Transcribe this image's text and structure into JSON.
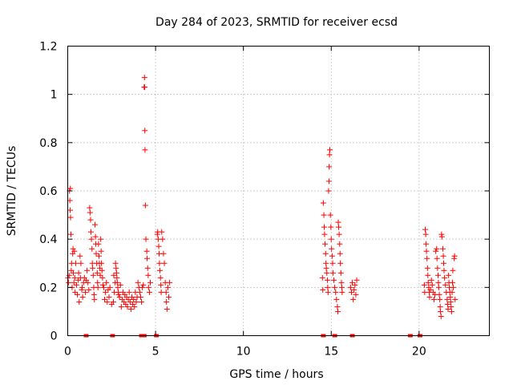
{
  "chart_data": {
    "type": "scatter",
    "title": "Day 284 of 2023, SRMTID for receiver ecsd",
    "xlabel": "GPS time / hours",
    "ylabel": "SRMTID / TECUs",
    "xlim": [
      0,
      24
    ],
    "ylim": [
      0,
      1.2
    ],
    "xticks": [
      0,
      5,
      10,
      15,
      20
    ],
    "yticks": [
      0,
      0.2,
      0.4,
      0.6,
      0.8,
      1,
      1.2
    ],
    "xtick_labels": [
      "0",
      "5",
      "10",
      "15",
      "20"
    ],
    "ytick_labels": [
      "0",
      "0.2",
      "0.4",
      "0.6",
      "0.8",
      "1",
      "1.2"
    ],
    "grid": true,
    "marker": "+",
    "color": "#ff0000",
    "series": [
      {
        "name": "SRMTID",
        "points": [
          [
            0.02,
            0.24
          ],
          [
            0.05,
            0.22
          ],
          [
            0.08,
            0.25
          ],
          [
            0.1,
            0.6
          ],
          [
            0.12,
            0.56
          ],
          [
            0.14,
            0.52
          ],
          [
            0.15,
            0.61
          ],
          [
            0.16,
            0.49
          ],
          [
            0.18,
            0.42
          ],
          [
            0.2,
            0.27
          ],
          [
            0.22,
            0.3
          ],
          [
            0.25,
            0.2
          ],
          [
            0.28,
            0.34
          ],
          [
            0.3,
            0.36
          ],
          [
            0.32,
            0.26
          ],
          [
            0.35,
            0.22
          ],
          [
            0.38,
            0.35
          ],
          [
            0.4,
            0.24
          ],
          [
            0.42,
            0.18
          ],
          [
            0.45,
            0.3
          ],
          [
            0.5,
            0.21
          ],
          [
            0.55,
            0.17
          ],
          [
            0.6,
            0.23
          ],
          [
            0.62,
            0.26
          ],
          [
            0.65,
            0.14
          ],
          [
            0.7,
            0.33
          ],
          [
            0.72,
            0.24
          ],
          [
            0.75,
            0.3
          ],
          [
            0.8,
            0.19
          ],
          [
            0.82,
            0.2
          ],
          [
            0.85,
            0.16
          ],
          [
            0.9,
            0.22
          ],
          [
            0.95,
            0.24
          ],
          [
            1.0,
            0.18
          ],
          [
            1.05,
            0.23
          ],
          [
            1.1,
            0.27
          ],
          [
            1.15,
            0.22
          ],
          [
            1.2,
            0.19
          ],
          [
            1.25,
            0.53
          ],
          [
            1.27,
            0.51
          ],
          [
            1.3,
            0.48
          ],
          [
            1.32,
            0.43
          ],
          [
            1.35,
            0.4
          ],
          [
            1.38,
            0.36
          ],
          [
            1.4,
            0.3
          ],
          [
            1.42,
            0.28
          ],
          [
            1.45,
            0.25
          ],
          [
            1.48,
            0.2
          ],
          [
            1.5,
            0.17
          ],
          [
            1.52,
            0.15
          ],
          [
            1.55,
            0.46
          ],
          [
            1.58,
            0.41
          ],
          [
            1.6,
            0.38
          ],
          [
            1.62,
            0.34
          ],
          [
            1.65,
            0.3
          ],
          [
            1.68,
            0.26
          ],
          [
            1.7,
            0.22
          ],
          [
            1.72,
            0.2
          ],
          [
            1.75,
            0.38
          ],
          [
            1.78,
            0.33
          ],
          [
            1.8,
            0.3
          ],
          [
            1.82,
            0.28
          ],
          [
            1.85,
            0.25
          ],
          [
            1.88,
            0.4
          ],
          [
            1.9,
            0.35
          ],
          [
            1.92,
            0.3
          ],
          [
            1.95,
            0.27
          ],
          [
            1.98,
            0.24
          ],
          [
            2.0,
            0.21
          ],
          [
            2.05,
            0.2
          ],
          [
            2.1,
            0.15
          ],
          [
            2.15,
            0.18
          ],
          [
            2.2,
            0.22
          ],
          [
            2.25,
            0.14
          ],
          [
            2.3,
            0.19
          ],
          [
            2.35,
            0.16
          ],
          [
            2.4,
            0.2
          ],
          [
            2.5,
            0.13
          ],
          [
            2.6,
            0.14
          ],
          [
            2.62,
            0.25
          ],
          [
            2.65,
            0.18
          ],
          [
            2.7,
            0.22
          ],
          [
            2.72,
            0.3
          ],
          [
            2.75,
            0.28
          ],
          [
            2.78,
            0.26
          ],
          [
            2.8,
            0.24
          ],
          [
            2.82,
            0.22
          ],
          [
            2.85,
            0.2
          ],
          [
            2.88,
            0.18
          ],
          [
            2.9,
            0.17
          ],
          [
            2.95,
            0.16
          ],
          [
            3.0,
            0.21
          ],
          [
            3.05,
            0.12
          ],
          [
            3.1,
            0.15
          ],
          [
            3.15,
            0.18
          ],
          [
            3.2,
            0.14
          ],
          [
            3.25,
            0.17
          ],
          [
            3.3,
            0.13
          ],
          [
            3.35,
            0.16
          ],
          [
            3.4,
            0.12
          ],
          [
            3.45,
            0.15
          ],
          [
            3.5,
            0.18
          ],
          [
            3.55,
            0.14
          ],
          [
            3.6,
            0.11
          ],
          [
            3.65,
            0.16
          ],
          [
            3.7,
            0.13
          ],
          [
            3.75,
            0.15
          ],
          [
            3.8,
            0.12
          ],
          [
            3.85,
            0.18
          ],
          [
            3.9,
            0.14
          ],
          [
            3.95,
            0.16
          ],
          [
            4.0,
            0.22
          ],
          [
            4.05,
            0.2
          ],
          [
            4.1,
            0.18
          ],
          [
            4.15,
            0.16
          ],
          [
            4.2,
            0.14
          ],
          [
            4.25,
            0.2
          ],
          [
            4.3,
            0.21
          ],
          [
            4.35,
            1.03
          ],
          [
            4.37,
            1.07
          ],
          [
            4.38,
            1.03
          ],
          [
            4.39,
            0.85
          ],
          [
            4.4,
            0.77
          ],
          [
            4.42,
            0.54
          ],
          [
            4.45,
            0.4
          ],
          [
            4.5,
            0.35
          ],
          [
            4.52,
            0.32
          ],
          [
            4.55,
            0.28
          ],
          [
            4.58,
            0.25
          ],
          [
            4.6,
            0.2
          ],
          [
            4.65,
            0.18
          ],
          [
            4.7,
            0.22
          ],
          [
            5.1,
            0.42
          ],
          [
            5.12,
            0.43
          ],
          [
            5.15,
            0.4
          ],
          [
            5.18,
            0.37
          ],
          [
            5.2,
            0.34
          ],
          [
            5.22,
            0.3
          ],
          [
            5.25,
            0.27
          ],
          [
            5.28,
            0.24
          ],
          [
            5.3,
            0.21
          ],
          [
            5.32,
            0.18
          ],
          [
            5.35,
            0.43
          ],
          [
            5.4,
            0.4
          ],
          [
            5.45,
            0.34
          ],
          [
            5.5,
            0.3
          ],
          [
            5.55,
            0.22
          ],
          [
            5.6,
            0.18
          ],
          [
            5.62,
            0.14
          ],
          [
            5.65,
            0.11
          ],
          [
            5.7,
            0.2
          ],
          [
            5.75,
            0.16
          ],
          [
            5.8,
            0.22
          ],
          [
            14.5,
            0.24
          ],
          [
            14.52,
            0.19
          ],
          [
            14.55,
            0.55
          ],
          [
            14.58,
            0.5
          ],
          [
            14.6,
            0.45
          ],
          [
            14.62,
            0.42
          ],
          [
            14.65,
            0.38
          ],
          [
            14.68,
            0.34
          ],
          [
            14.7,
            0.3
          ],
          [
            14.72,
            0.28
          ],
          [
            14.75,
            0.26
          ],
          [
            14.78,
            0.23
          ],
          [
            14.8,
            0.2
          ],
          [
            14.82,
            0.18
          ],
          [
            14.85,
            0.6
          ],
          [
            14.87,
            0.64
          ],
          [
            14.88,
            0.7
          ],
          [
            14.9,
            0.75
          ],
          [
            14.92,
            0.77
          ],
          [
            14.95,
            0.5
          ],
          [
            14.98,
            0.45
          ],
          [
            15.0,
            0.4
          ],
          [
            15.02,
            0.36
          ],
          [
            15.05,
            0.33
          ],
          [
            15.08,
            0.3
          ],
          [
            15.1,
            0.26
          ],
          [
            15.15,
            0.23
          ],
          [
            15.2,
            0.2
          ],
          [
            15.25,
            0.18
          ],
          [
            15.3,
            0.15
          ],
          [
            15.35,
            0.12
          ],
          [
            15.38,
            0.1
          ],
          [
            15.4,
            0.47
          ],
          [
            15.42,
            0.45
          ],
          [
            15.45,
            0.42
          ],
          [
            15.48,
            0.38
          ],
          [
            15.5,
            0.34
          ],
          [
            15.52,
            0.3
          ],
          [
            15.55,
            0.26
          ],
          [
            15.58,
            0.22
          ],
          [
            15.6,
            0.2
          ],
          [
            15.62,
            0.18
          ],
          [
            16.1,
            0.2
          ],
          [
            16.15,
            0.18
          ],
          [
            16.2,
            0.22
          ],
          [
            16.25,
            0.15
          ],
          [
            16.3,
            0.19
          ],
          [
            16.35,
            0.21
          ],
          [
            16.4,
            0.17
          ],
          [
            16.45,
            0.23
          ],
          [
            20.3,
            0.21
          ],
          [
            20.32,
            0.18
          ],
          [
            20.35,
            0.44
          ],
          [
            20.38,
            0.42
          ],
          [
            20.4,
            0.38
          ],
          [
            20.42,
            0.35
          ],
          [
            20.45,
            0.32
          ],
          [
            20.48,
            0.28
          ],
          [
            20.5,
            0.25
          ],
          [
            20.52,
            0.22
          ],
          [
            20.55,
            0.2
          ],
          [
            20.58,
            0.18
          ],
          [
            20.6,
            0.16
          ],
          [
            20.65,
            0.19
          ],
          [
            20.7,
            0.23
          ],
          [
            20.75,
            0.21
          ],
          [
            20.8,
            0.18
          ],
          [
            20.85,
            0.15
          ],
          [
            20.9,
            0.17
          ],
          [
            20.95,
            0.35
          ],
          [
            21.0,
            0.36
          ],
          [
            21.02,
            0.32
          ],
          [
            21.05,
            0.28
          ],
          [
            21.08,
            0.25
          ],
          [
            21.1,
            0.22
          ],
          [
            21.12,
            0.2
          ],
          [
            21.15,
            0.17
          ],
          [
            21.18,
            0.15
          ],
          [
            21.2,
            0.12
          ],
          [
            21.22,
            0.1
          ],
          [
            21.25,
            0.08
          ],
          [
            21.28,
            0.42
          ],
          [
            21.3,
            0.41
          ],
          [
            21.35,
            0.36
          ],
          [
            21.38,
            0.33
          ],
          [
            21.4,
            0.3
          ],
          [
            21.42,
            0.27
          ],
          [
            21.45,
            0.24
          ],
          [
            21.5,
            0.21
          ],
          [
            21.55,
            0.18
          ],
          [
            21.6,
            0.15
          ],
          [
            21.62,
            0.13
          ],
          [
            21.65,
            0.11
          ],
          [
            21.68,
            0.25
          ],
          [
            21.7,
            0.22
          ],
          [
            21.72,
            0.2
          ],
          [
            21.75,
            0.18
          ],
          [
            21.78,
            0.16
          ],
          [
            21.8,
            0.14
          ],
          [
            21.82,
            0.12
          ],
          [
            21.85,
            0.1
          ],
          [
            21.88,
            0.18
          ],
          [
            21.9,
            0.22
          ],
          [
            21.92,
            0.27
          ],
          [
            21.95,
            0.2
          ],
          [
            22.0,
            0.32
          ],
          [
            22.02,
            0.33
          ],
          [
            22.05,
            0.15
          ]
        ],
        "zero_points": [
          1.05,
          2.55,
          4.2,
          4.35,
          5.05,
          14.55,
          15.2,
          16.2,
          19.5,
          20.05
        ]
      }
    ]
  }
}
